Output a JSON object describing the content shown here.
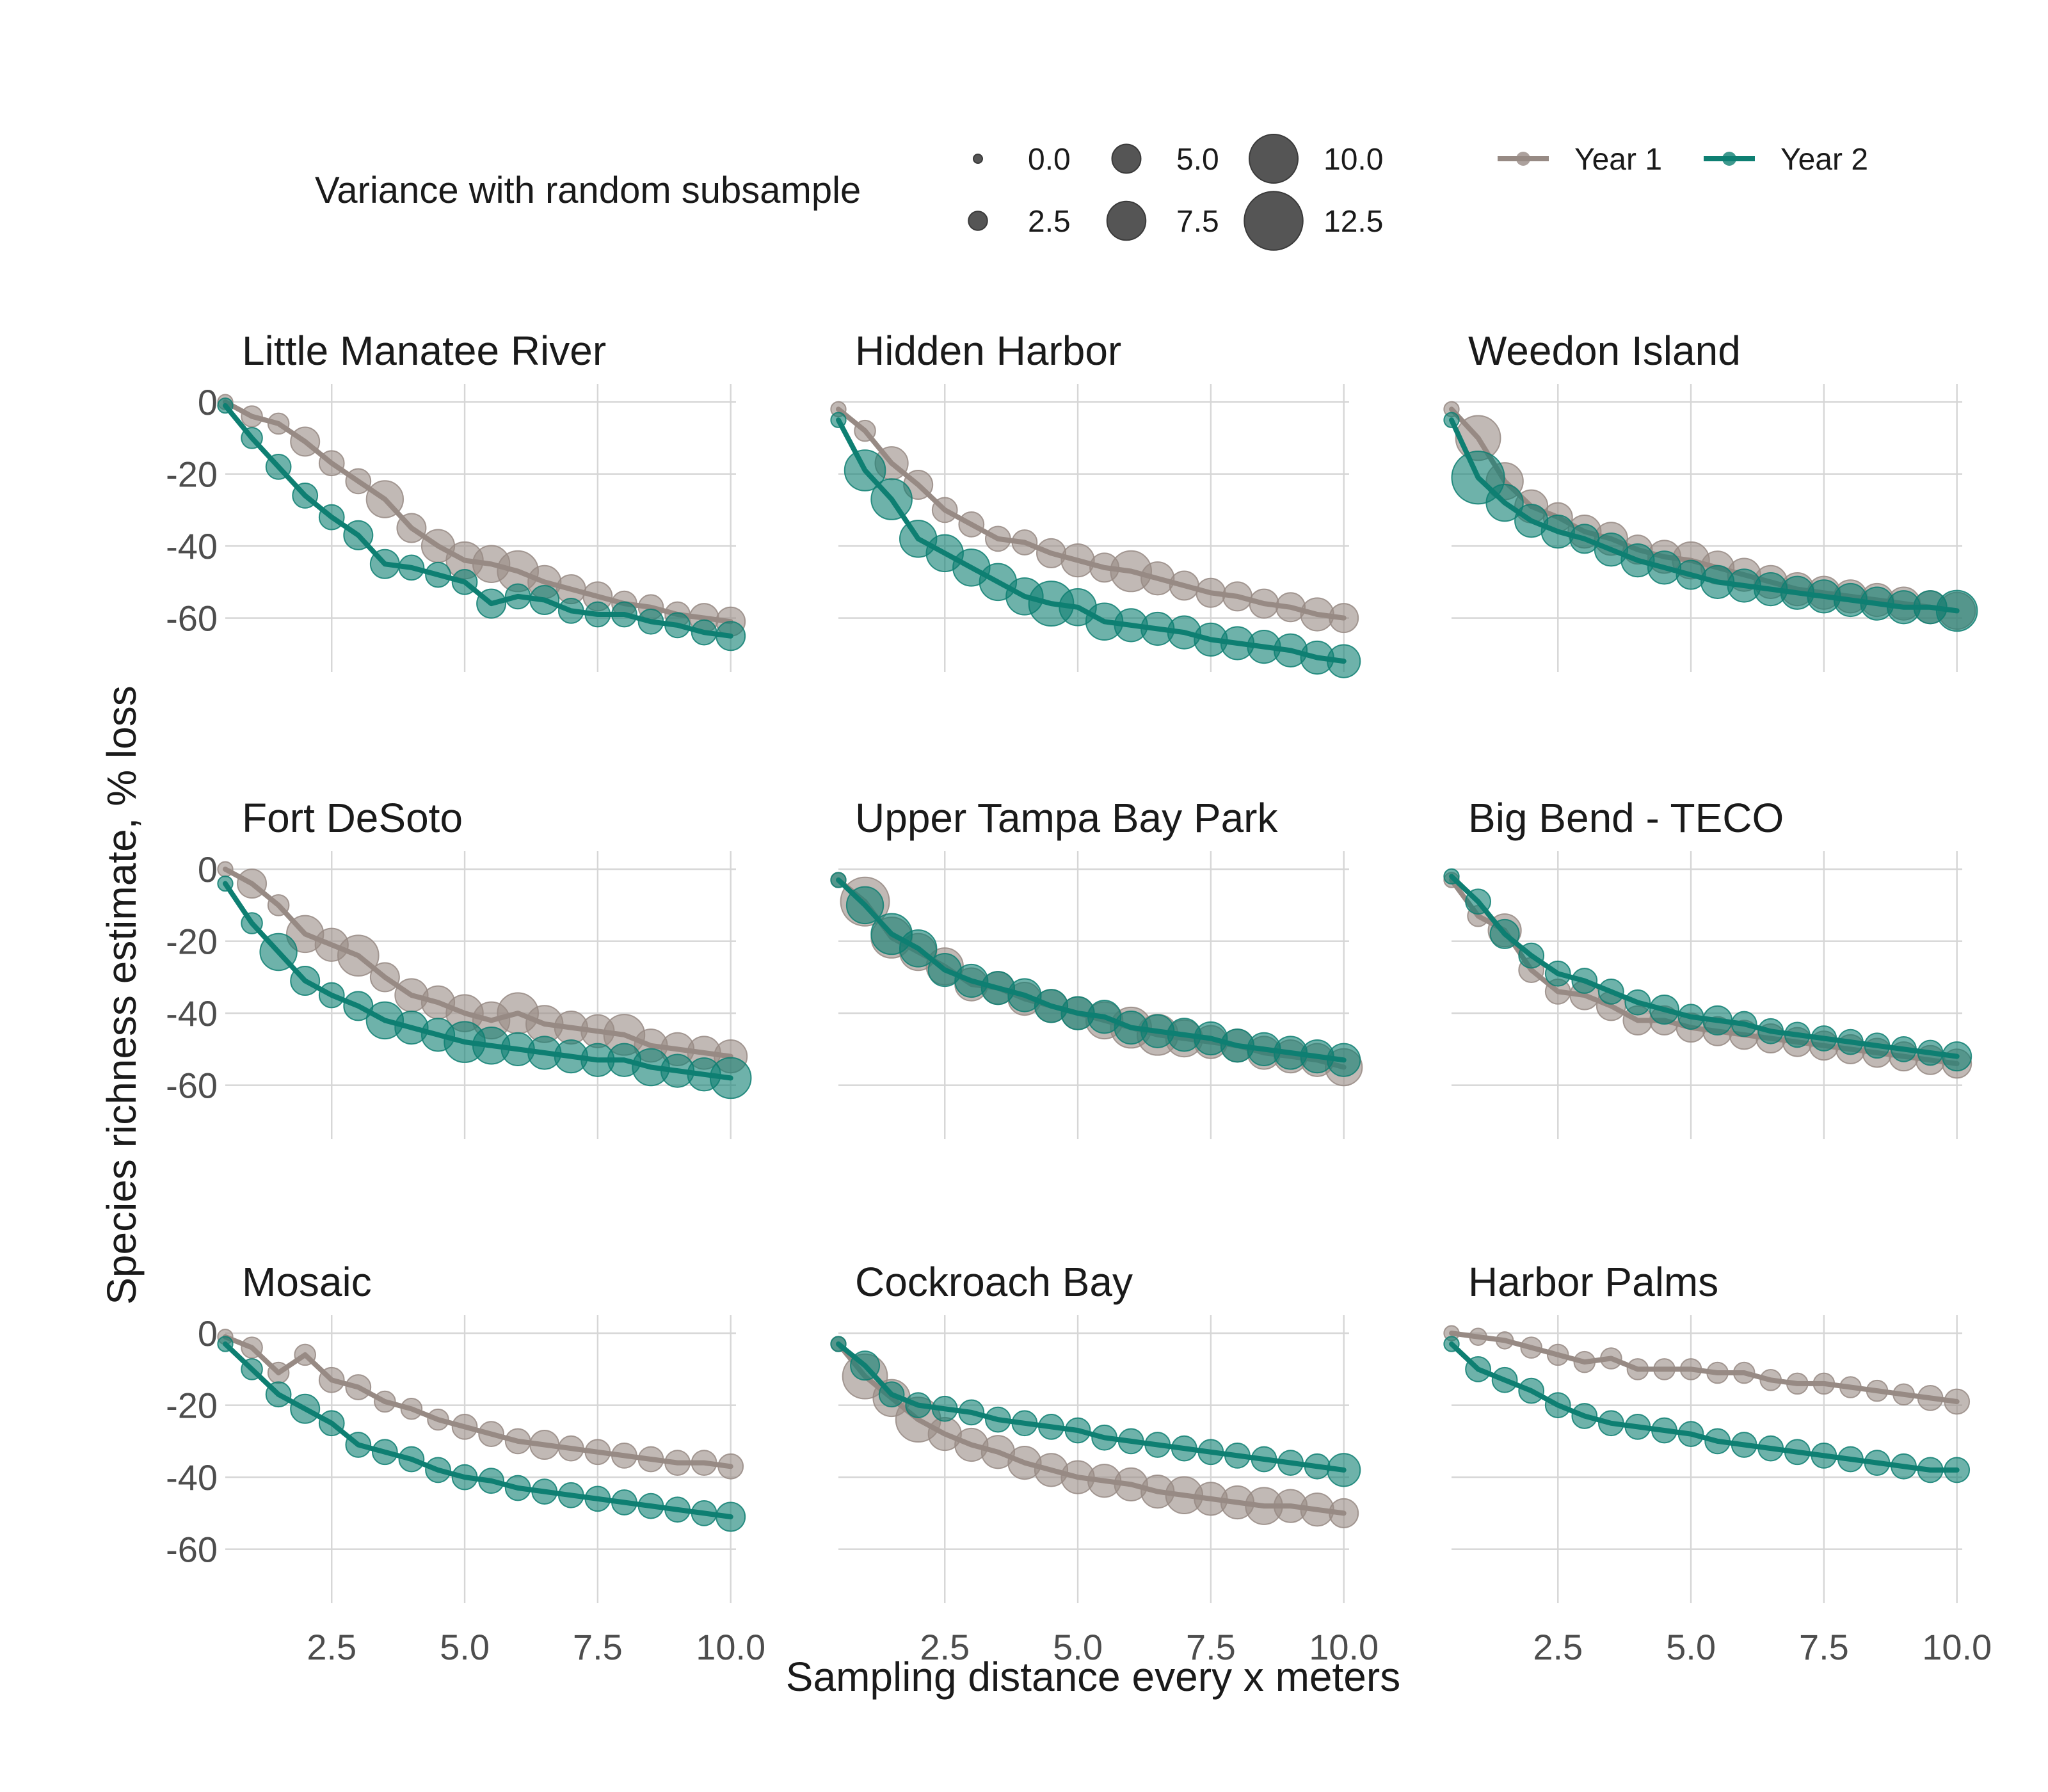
{
  "colors": {
    "year1": "#978a84",
    "year2": "#0e7f72",
    "size_key": "#555555"
  },
  "legend": {
    "size_title": "Variance with random subsample",
    "size_items": [
      {
        "label": "0.0",
        "value": 0.0
      },
      {
        "label": "2.5",
        "value": 2.5
      },
      {
        "label": "5.0",
        "value": 5.0
      },
      {
        "label": "7.5",
        "value": 7.5
      },
      {
        "label": "10.0",
        "value": 10.0
      },
      {
        "label": "12.5",
        "value": 12.5
      }
    ],
    "series_items": [
      {
        "label": "Year 1"
      },
      {
        "label": "Year 2"
      }
    ]
  },
  "chart_data": {
    "type": "scatter",
    "layout": "facet 3x3",
    "xlabel": "Sampling distance every x meters",
    "ylabel": "Species richness estimate, % loss",
    "xlim": [
      0.5,
      10.1
    ],
    "ylim": [
      -75,
      5
    ],
    "x_ticks": [
      "2.5",
      "5.0",
      "7.5",
      "10.0"
    ],
    "y_ticks": [
      "0",
      "-20",
      "-40",
      "-60"
    ],
    "grid": true,
    "legend_position": "top",
    "x_values": [
      0.5,
      1,
      1.5,
      2,
      2.5,
      3,
      3.5,
      4,
      4.5,
      5,
      5.5,
      6,
      6.5,
      7,
      7.5,
      8,
      8.5,
      9,
      9.5,
      10
    ],
    "panels": [
      {
        "title": "Little Manatee River",
        "series": [
          {
            "name": "Year 1",
            "values": [
              0,
              -4,
              -6,
              -11,
              -17,
              -22,
              -27,
              -35,
              -40,
              -44,
              -45,
              -47,
              -50,
              -52,
              -54,
              -56,
              -57,
              -59,
              -60,
              -61
            ],
            "variance": [
              1.5,
              3,
              3,
              5,
              4,
              4,
              7,
              5,
              6,
              7,
              7,
              8,
              6,
              5,
              5,
              4,
              4,
              4,
              5,
              5
            ]
          },
          {
            "name": "Year 2",
            "values": [
              -1,
              -10,
              -18,
              -26,
              -32,
              -37,
              -45,
              -46,
              -48,
              -50,
              -56,
              -54,
              -55,
              -58,
              -59,
              -59,
              -61,
              -62,
              -64,
              -65
            ],
            "variance": [
              1.5,
              3,
              4,
              4,
              4,
              5,
              5,
              4,
              4,
              4,
              5,
              4,
              5,
              4,
              4,
              4,
              4,
              4,
              4,
              5
            ]
          }
        ]
      },
      {
        "title": "Hidden Harbor",
        "series": [
          {
            "name": "Year 1",
            "values": [
              -2,
              -8,
              -17,
              -23,
              -30,
              -34,
              -38,
              -39,
              -42,
              -44,
              -46,
              -47,
              -49,
              -51,
              -53,
              -54,
              -56,
              -57,
              -59,
              -60
            ],
            "variance": [
              1.5,
              3,
              6,
              5,
              4,
              4,
              4,
              4,
              5,
              6,
              5,
              8,
              6,
              5,
              5,
              5,
              5,
              5,
              6,
              5
            ]
          },
          {
            "name": "Year 2",
            "values": [
              -5,
              -19,
              -27,
              -38,
              -42,
              -46,
              -50,
              -54,
              -56,
              -57,
              -61,
              -62,
              -63,
              -64,
              -66,
              -67,
              -68,
              -69,
              -71,
              -72
            ],
            "variance": [
              1.5,
              8,
              8,
              7,
              7,
              7,
              7,
              7,
              9,
              7,
              7,
              6,
              6,
              6,
              6,
              6,
              6,
              6,
              6,
              6
            ]
          }
        ]
      },
      {
        "title": "Weedon Island",
        "series": [
          {
            "name": "Year 1",
            "values": [
              -2,
              -10,
              -22,
              -29,
              -32,
              -36,
              -38,
              -41,
              -43,
              -44,
              -46,
              -48,
              -50,
              -52,
              -53,
              -54,
              -55,
              -56,
              -57,
              -58
            ],
            "variance": [
              1.5,
              9,
              7,
              6,
              5,
              6,
              6,
              5,
              6,
              7,
              6,
              6,
              6,
              6,
              6,
              6,
              6,
              6,
              6,
              7
            ]
          },
          {
            "name": "Year 2",
            "values": [
              -5,
              -21,
              -28,
              -33,
              -36,
              -38,
              -41,
              -44,
              -46,
              -48,
              -50,
              -51,
              -52,
              -53,
              -54,
              -55,
              -56,
              -57,
              -57,
              -58
            ],
            "variance": [
              1.5,
              11,
              7,
              6,
              6,
              5,
              6,
              6,
              6,
              5,
              6,
              6,
              6,
              6,
              6,
              6,
              6,
              6,
              6,
              8
            ]
          }
        ]
      },
      {
        "title": "Fort DeSoto",
        "series": [
          {
            "name": "Year 1",
            "values": [
              0,
              -4,
              -10,
              -18,
              -21,
              -24,
              -30,
              -35,
              -37,
              -40,
              -42,
              -40,
              -43,
              -44,
              -45,
              -46,
              -49,
              -50,
              -51,
              -52
            ],
            "variance": [
              1.5,
              5,
              3,
              7,
              6,
              8,
              5,
              6,
              6,
              7,
              7,
              8,
              7,
              6,
              6,
              8,
              6,
              6,
              6,
              6
            ]
          },
          {
            "name": "Year 2",
            "values": [
              -4,
              -15,
              -23,
              -31,
              -35,
              -38,
              -42,
              -44,
              -46,
              -48,
              -49,
              -50,
              -51,
              -52,
              -53,
              -53,
              -55,
              -56,
              -57,
              -58
            ],
            "variance": [
              1.5,
              3,
              7,
              5,
              4,
              5,
              7,
              6,
              6,
              8,
              7,
              6,
              6,
              6,
              6,
              6,
              7,
              6,
              6,
              8
            ]
          }
        ]
      },
      {
        "title": "Upper Tampa Bay Park",
        "series": [
          {
            "name": "Year 1",
            "values": [
              -3,
              -9,
              -19,
              -23,
              -27,
              -32,
              -33,
              -36,
              -38,
              -40,
              -42,
              -44,
              -46,
              -47,
              -48,
              -49,
              -51,
              -52,
              -53,
              -55
            ],
            "variance": [
              1.5,
              10,
              8,
              7,
              7,
              6,
              6,
              6,
              6,
              6,
              7,
              8,
              8,
              7,
              6,
              6,
              6,
              6,
              6,
              7
            ]
          },
          {
            "name": "Year 2",
            "values": [
              -3,
              -10,
              -18,
              -22,
              -28,
              -31,
              -33,
              -35,
              -38,
              -40,
              -41,
              -44,
              -45,
              -46,
              -47,
              -49,
              -50,
              -51,
              -52,
              -53
            ],
            "variance": [
              1.5,
              7,
              8,
              7,
              6,
              6,
              6,
              6,
              6,
              6,
              6,
              6,
              6,
              6,
              6,
              6,
              6,
              6,
              6,
              6
            ]
          }
        ]
      },
      {
        "title": "Big Bend - TECO",
        "series": [
          {
            "name": "Year 1",
            "values": [
              -3,
              -13,
              -17,
              -28,
              -34,
              -35,
              -38,
              -42,
              -42,
              -44,
              -45,
              -46,
              -47,
              -48,
              -49,
              -50,
              -51,
              -52,
              -53,
              -54
            ],
            "variance": [
              1.5,
              3,
              6,
              4,
              4,
              5,
              5,
              5,
              5,
              5,
              5,
              5,
              5,
              5,
              5,
              5,
              5,
              5,
              5,
              5
            ]
          },
          {
            "name": "Year 2",
            "values": [
              -2,
              -9,
              -18,
              -24,
              -29,
              -31,
              -34,
              -37,
              -39,
              -41,
              -42,
              -43,
              -45,
              -46,
              -47,
              -48,
              -49,
              -50,
              -51,
              -52
            ],
            "variance": [
              1.5,
              4,
              5,
              4,
              4,
              4,
              4,
              4,
              5,
              4,
              5,
              4,
              4,
              4,
              4,
              4,
              4,
              4,
              4,
              5
            ]
          }
        ]
      },
      {
        "title": "Mosaic",
        "series": [
          {
            "name": "Year 1",
            "values": [
              -1,
              -4,
              -11,
              -6,
              -13,
              -15,
              -19,
              -21,
              -24,
              -26,
              -28,
              -30,
              -31,
              -32,
              -33,
              -34,
              -35,
              -36,
              -36,
              -37
            ],
            "variance": [
              1.5,
              3,
              3,
              3,
              4,
              4,
              3,
              3,
              3,
              4,
              4,
              4,
              5,
              4,
              4,
              4,
              4,
              4,
              4,
              4
            ]
          },
          {
            "name": "Year 2",
            "values": [
              -3,
              -10,
              -17,
              -21,
              -25,
              -31,
              -33,
              -35,
              -38,
              -40,
              -41,
              -43,
              -44,
              -45,
              -46,
              -47,
              -48,
              -49,
              -50,
              -51
            ],
            "variance": [
              1.5,
              3,
              4,
              5,
              4,
              4,
              4,
              4,
              4,
              4,
              4,
              4,
              4,
              4,
              4,
              4,
              4,
              4,
              4,
              5
            ]
          }
        ]
      },
      {
        "title": "Cockroach Bay",
        "series": [
          {
            "name": "Year 1",
            "values": [
              -3,
              -12,
              -18,
              -24,
              -28,
              -31,
              -33,
              -36,
              -38,
              -40,
              -41,
              -42,
              -44,
              -45,
              -46,
              -47,
              -48,
              -48,
              -49,
              -50
            ],
            "variance": [
              1.5,
              9,
              7,
              9,
              6,
              6,
              6,
              6,
              6,
              6,
              6,
              6,
              6,
              7,
              6,
              6,
              7,
              6,
              6,
              5
            ]
          },
          {
            "name": "Year 2",
            "values": [
              -3,
              -9,
              -17,
              -20,
              -21,
              -22,
              -24,
              -25,
              -26,
              -27,
              -29,
              -30,
              -31,
              -32,
              -33,
              -34,
              -35,
              -36,
              -37,
              -38
            ],
            "variance": [
              1.5,
              5,
              4,
              4,
              4,
              4,
              4,
              4,
              4,
              4,
              4,
              4,
              4,
              4,
              4,
              4,
              4,
              4,
              4,
              6
            ]
          }
        ]
      },
      {
        "title": "Harbor Palms",
        "series": [
          {
            "name": "Year 1",
            "values": [
              0,
              -1,
              -2,
              -4,
              -6,
              -8,
              -7,
              -10,
              -10,
              -10,
              -11,
              -11,
              -13,
              -14,
              -14,
              -15,
              -16,
              -17,
              -18,
              -19
            ],
            "variance": [
              1.5,
              2,
              2,
              3,
              3,
              3,
              3,
              3,
              3,
              3,
              3,
              3,
              3,
              3,
              3,
              3,
              3,
              3,
              4,
              4
            ]
          },
          {
            "name": "Year 2",
            "values": [
              -3,
              -10,
              -13,
              -16,
              -20,
              -23,
              -25,
              -26,
              -27,
              -28,
              -30,
              -31,
              -32,
              -33,
              -34,
              -35,
              -36,
              -37,
              -38,
              -38
            ],
            "variance": [
              1.5,
              4,
              4,
              4,
              4,
              4,
              4,
              4,
              4,
              4,
              4,
              4,
              4,
              4,
              4,
              4,
              4,
              4,
              4,
              4
            ]
          }
        ]
      }
    ]
  }
}
